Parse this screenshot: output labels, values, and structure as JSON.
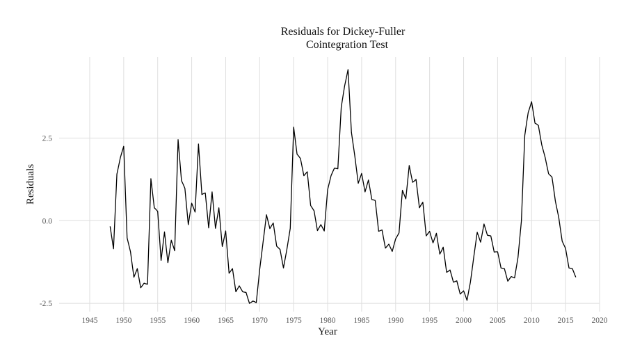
{
  "chart_data": {
    "type": "line",
    "title_lines": [
      "Residuals for Dickey-Fuller",
      "Cointegration Test"
    ],
    "xlabel": "Year",
    "ylabel": "Residuals",
    "xlim": [
      1940.5,
      2020
    ],
    "ylim": [
      -2.75,
      4.95
    ],
    "x_ticks": [
      1945,
      1950,
      1955,
      1960,
      1965,
      1970,
      1975,
      1980,
      1985,
      1990,
      1995,
      2000,
      2005,
      2010,
      2015,
      2020
    ],
    "x_tick_labels": [
      "1945",
      "1950",
      "1955",
      "1960",
      "1965",
      "1970",
      "1975",
      "1980",
      "1985",
      "1990",
      "1995",
      "2000",
      "2005",
      "2010",
      "2015",
      "2020"
    ],
    "y_ticks": [
      -2.5,
      0,
      2.5
    ],
    "y_tick_labels": [
      "-2.5",
      "0.0",
      "2.5"
    ],
    "grid": true,
    "series": [
      {
        "x": [
          1948.0,
          1948.25,
          1948.5,
          1948.75,
          1949.0,
          1949.25,
          1949.5,
          1949.75,
          1950.0,
          1950.25,
          1950.5,
          1950.75,
          1951.0,
          1951.25,
          1951.5,
          1951.75,
          1952.0,
          1952.25,
          1952.5,
          1952.75,
          1953.0,
          1953.25,
          1953.5,
          1953.75,
          1954.0,
          1954.25,
          1954.5,
          1954.75,
          1955.0,
          1955.25,
          1955.5,
          1955.75,
          1956.0,
          1956.25,
          1956.5,
          1956.75,
          1957.0,
          1957.25,
          1957.5,
          1957.75,
          1958.0,
          1958.25,
          1958.5,
          1958.75,
          1959.0,
          1959.25,
          1959.5,
          1959.75,
          1960.0,
          1960.25,
          1960.5,
          1960.75,
          1961.0,
          1961.25,
          1961.5,
          1961.75,
          1962.0,
          1962.25,
          1962.5,
          1962.75,
          1963.0,
          1963.25,
          1963.5,
          1963.75,
          1964.0,
          1964.25,
          1964.5,
          1964.75,
          1965.0,
          1965.25,
          1965.5,
          1965.75,
          1966.0,
          1966.25,
          1966.5,
          1966.75,
          1967.0,
          1967.25,
          1967.5,
          1967.75,
          1968.0,
          1968.25,
          1968.5,
          1968.75,
          1969.0,
          1969.25,
          1969.5,
          1969.75,
          1970.0,
          1970.25,
          1970.5,
          1970.75,
          1971.0,
          1971.25,
          1971.5,
          1971.75,
          1972.0,
          1972.25,
          1972.5,
          1972.75,
          1973.0,
          1973.25,
          1973.5,
          1973.75,
          1974.0,
          1974.25,
          1974.5,
          1974.75,
          1975.0,
          1975.25,
          1975.5,
          1975.75,
          1976.0,
          1976.25,
          1976.5,
          1976.75,
          1977.0,
          1977.25,
          1977.5,
          1977.75,
          1978.0,
          1978.25,
          1978.5,
          1978.75,
          1979.0,
          1979.25,
          1979.5,
          1979.75,
          1980.0,
          1980.25,
          1980.5,
          1980.75,
          1981.0,
          1981.25,
          1981.5,
          1981.75,
          1982.0,
          1982.25,
          1982.5,
          1982.75,
          1983.0,
          1983.25,
          1983.5,
          1983.75,
          1984.0,
          1984.25,
          1984.5,
          1984.75,
          1985.0,
          1985.25,
          1985.5,
          1985.75,
          1986.0,
          1986.25,
          1986.5,
          1986.75,
          1987.0,
          1987.25,
          1987.5,
          1987.75,
          1988.0,
          1988.25,
          1988.5,
          1988.75,
          1989.0,
          1989.25,
          1989.5,
          1989.75,
          1990.0,
          1990.25,
          1990.5,
          1990.75,
          1991.0,
          1991.25,
          1991.5,
          1991.75,
          1992.0,
          1992.25,
          1992.5,
          1992.75,
          1993.0,
          1993.25,
          1993.5,
          1993.75,
          1994.0,
          1994.25,
          1994.5,
          1994.75,
          1995.0,
          1995.25,
          1995.5,
          1995.75,
          1996.0,
          1996.25,
          1996.5,
          1996.75,
          1997.0,
          1997.25,
          1997.5,
          1997.75,
          1998.0,
          1998.25,
          1998.5,
          1998.75,
          1999.0,
          1999.25,
          1999.5,
          1999.75,
          2000.0,
          2000.25,
          2000.5,
          2000.75,
          2001.0,
          2001.25,
          2001.5,
          2001.75,
          2002.0,
          2002.25,
          2002.5,
          2002.75,
          2003.0,
          2003.25,
          2003.5,
          2003.75,
          2004.0,
          2004.25,
          2004.5,
          2004.75,
          2005.0,
          2005.25,
          2005.5,
          2005.75,
          2006.0,
          2006.25,
          2006.5,
          2006.75,
          2007.0,
          2007.25,
          2007.5,
          2007.75,
          2008.0,
          2008.25,
          2008.5,
          2008.75,
          2009.0,
          2009.25,
          2009.5,
          2009.75,
          2010.0,
          2010.25,
          2010.5,
          2010.75,
          2011.0,
          2011.25,
          2011.5,
          2011.75,
          2012.0,
          2012.25,
          2012.5,
          2012.75,
          2013.0,
          2013.25,
          2013.5,
          2013.75,
          2014.0,
          2014.25,
          2014.5,
          2014.75,
          2015.0,
          2015.25,
          2015.5,
          2015.75,
          2016.0,
          2016.25,
          2016.5
        ],
        "y": [
          -0.17,
          -0.51,
          -0.85,
          0.28,
          1.41,
          1.65,
          1.9,
          2.08,
          2.25,
          0.86,
          -0.52,
          -0.73,
          -0.94,
          -1.33,
          -1.71,
          -1.58,
          -1.45,
          -1.74,
          -2.03,
          -1.96,
          -1.89,
          -1.91,
          -1.92,
          -0.33,
          1.27,
          0.83,
          0.39,
          0.34,
          0.28,
          -0.46,
          -1.2,
          -0.77,
          -0.34,
          -0.81,
          -1.27,
          -0.93,
          -0.59,
          -0.75,
          -0.91,
          0.77,
          2.45,
          1.83,
          1.21,
          1.1,
          0.98,
          0.43,
          -0.12,
          0.21,
          0.53,
          0.4,
          0.26,
          1.29,
          2.32,
          1.56,
          0.79,
          0.82,
          0.84,
          0.31,
          -0.22,
          0.33,
          0.87,
          0.32,
          -0.23,
          0.08,
          0.39,
          -0.2,
          -0.78,
          -0.55,
          -0.31,
          -0.95,
          -1.59,
          -1.52,
          -1.45,
          -1.8,
          -2.15,
          -2.06,
          -1.97,
          -2.06,
          -2.15,
          -2.16,
          -2.17,
          -2.34,
          -2.5,
          -2.47,
          -2.43,
          -2.45,
          -2.48,
          -1.98,
          -1.48,
          -1.07,
          -0.65,
          -0.24,
          0.18,
          -0.03,
          -0.24,
          -0.15,
          -0.07,
          -0.42,
          -0.77,
          -0.82,
          -0.87,
          -1.15,
          -1.43,
          -1.15,
          -0.87,
          -0.55,
          -0.23,
          1.3,
          2.83,
          2.42,
          2.01,
          1.95,
          1.88,
          1.62,
          1.36,
          1.42,
          1.48,
          0.97,
          0.46,
          0.38,
          0.3,
          0.0,
          -0.3,
          -0.21,
          -0.12,
          -0.21,
          -0.31,
          0.32,
          0.94,
          1.15,
          1.36,
          1.48,
          1.59,
          1.58,
          1.57,
          2.5,
          3.43,
          3.76,
          4.08,
          4.32,
          4.57,
          3.62,
          2.67,
          2.31,
          1.95,
          1.54,
          1.13,
          1.28,
          1.43,
          1.15,
          0.87,
          1.05,
          1.23,
          0.94,
          0.64,
          0.63,
          0.61,
          0.15,
          -0.32,
          -0.3,
          -0.28,
          -0.56,
          -0.83,
          -0.77,
          -0.71,
          -0.82,
          -0.93,
          -0.74,
          -0.55,
          -0.46,
          -0.37,
          0.28,
          0.92,
          0.79,
          0.66,
          1.16,
          1.67,
          1.41,
          1.16,
          1.2,
          1.25,
          0.82,
          0.39,
          0.48,
          0.56,
          0.06,
          -0.46,
          -0.39,
          -0.32,
          -0.5,
          -0.67,
          -0.53,
          -0.38,
          -0.7,
          -1.01,
          -0.91,
          -0.8,
          -1.18,
          -1.56,
          -1.53,
          -1.49,
          -1.67,
          -1.86,
          -1.84,
          -1.82,
          -2.02,
          -2.22,
          -2.17,
          -2.12,
          -2.26,
          -2.41,
          -2.13,
          -1.86,
          -1.48,
          -1.09,
          -0.72,
          -0.35,
          -0.5,
          -0.65,
          -0.38,
          -0.1,
          -0.27,
          -0.44,
          -0.45,
          -0.46,
          -0.7,
          -0.95,
          -0.94,
          -0.94,
          -1.18,
          -1.43,
          -1.44,
          -1.45,
          -1.64,
          -1.83,
          -1.76,
          -1.69,
          -1.71,
          -1.73,
          -1.42,
          -1.11,
          -0.56,
          -0.01,
          1.29,
          2.58,
          2.94,
          3.27,
          3.43,
          3.6,
          3.28,
          2.95,
          2.92,
          2.88,
          2.58,
          2.29,
          2.1,
          1.91,
          1.66,
          1.42,
          1.37,
          1.32,
          0.96,
          0.59,
          0.34,
          0.09,
          -0.27,
          -0.62,
          -0.73,
          -0.84,
          -1.14,
          -1.43,
          -1.44,
          -1.45,
          -1.58,
          -1.71
        ]
      }
    ]
  }
}
